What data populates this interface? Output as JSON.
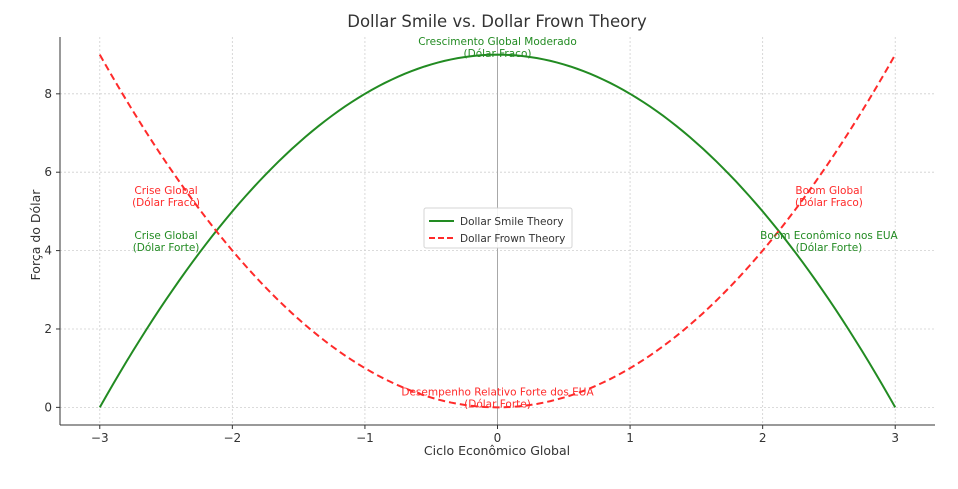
{
  "chart_data": {
    "type": "line",
    "title": "Dollar Smile vs. Dollar Frown Theory",
    "xlabel": "Ciclo Econômico Global",
    "ylabel": "Força do Dólar",
    "xlim": [
      -3.3,
      3.3
    ],
    "ylim": [
      -0.45,
      9.45
    ],
    "xticks": [
      -3,
      -2,
      -1,
      0,
      1,
      2,
      3
    ],
    "xtick_labels": [
      "−3",
      "−2",
      "−1",
      "0",
      "1",
      "2",
      "3"
    ],
    "yticks": [
      0,
      2,
      4,
      6,
      8
    ],
    "ytick_labels": [
      "0",
      "2",
      "4",
      "6",
      "8"
    ],
    "grid": true,
    "legend_position": "center",
    "series": [
      {
        "name": "Dollar Smile Theory",
        "color": "#228b22",
        "style": "solid",
        "function": "9 - x^2",
        "x": [
          -3,
          -2.5,
          -2,
          -1.5,
          -1,
          -0.5,
          0,
          0.5,
          1,
          1.5,
          2,
          2.5,
          3
        ],
        "y": [
          0,
          2.75,
          5,
          6.75,
          8,
          8.75,
          9,
          8.75,
          8,
          6.75,
          5,
          2.75,
          0
        ]
      },
      {
        "name": "Dollar Frown Theory",
        "color": "#ff2a2a",
        "style": "dashed",
        "function": "x^2",
        "x": [
          -3,
          -2.5,
          -2,
          -1.5,
          -1,
          -0.5,
          0,
          0.5,
          1,
          1.5,
          2,
          2.5,
          3
        ],
        "y": [
          9,
          6.25,
          4,
          2.25,
          1,
          0.25,
          0,
          0.25,
          1,
          2.25,
          4,
          6.25,
          9
        ]
      }
    ],
    "annotations": [
      {
        "id": "top-center",
        "lines": [
          "Crescimento Global Moderado",
          "(Dólar Fraco)"
        ],
        "color": "#228b22",
        "x": 0,
        "y": 9.25
      },
      {
        "id": "left-red",
        "lines": [
          "Crise Global",
          "(Dólar Fraco)"
        ],
        "color": "#ff2a2a",
        "x": -2.5,
        "y": 5.45
      },
      {
        "id": "left-green",
        "lines": [
          "Crise Global",
          "(Dólar Forte)"
        ],
        "color": "#228b22",
        "x": -2.5,
        "y": 4.3
      },
      {
        "id": "right-red",
        "lines": [
          "Boom Global",
          "(Dólar Fraco)"
        ],
        "color": "#ff2a2a",
        "x": 2.5,
        "y": 5.45
      },
      {
        "id": "right-green",
        "lines": [
          "Boom Econômico nos EUA",
          "(Dólar Forte)"
        ],
        "color": "#228b22",
        "x": 2.5,
        "y": 4.3
      },
      {
        "id": "bottom-center",
        "lines": [
          "Desempenho Relativo Forte dos EUA",
          "(Dólar Forte)"
        ],
        "color": "#ff2a2a",
        "x": 0,
        "y": 0.3
      }
    ]
  }
}
